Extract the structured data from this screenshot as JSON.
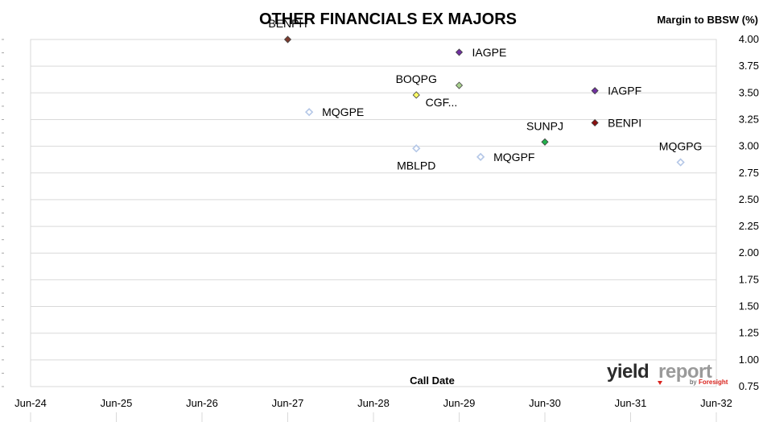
{
  "chart_data": {
    "type": "scatter",
    "title": "OTHER FINANCIALS EX MAJORS",
    "xlabel": "Call Date",
    "ylabel": "Margin to BBSW (%)",
    "x_ticks": [
      "Jun-24",
      "Jun-25",
      "Jun-26",
      "Jun-27",
      "Jun-28",
      "Jun-29",
      "Jun-30",
      "Jun-31",
      "Jun-32"
    ],
    "y_ticks": [
      "0.75",
      "1.00",
      "1.25",
      "1.50",
      "1.75",
      "2.00",
      "2.25",
      "2.50",
      "2.75",
      "3.00",
      "3.25",
      "3.50",
      "3.75",
      "4.00"
    ],
    "xlim": [
      "2024-06",
      "2032-06"
    ],
    "ylim": [
      0.75,
      4.0
    ],
    "grid": "horizontal",
    "points": [
      {
        "label": "BENPH",
        "x": "2027-06",
        "y": 4.0,
        "color": "#7a3b2e",
        "hollow": false,
        "label_pos": "above"
      },
      {
        "label": "IAGPE",
        "x": "2029-06",
        "y": 3.88,
        "color": "#7030a0",
        "hollow": false,
        "label_pos": "right"
      },
      {
        "label": "CGF...",
        "x": "2029-06",
        "y": 3.57,
        "color": "#a9d18e",
        "hollow": false,
        "label_pos": "below"
      },
      {
        "label": "BOQPG",
        "x": "2028-12",
        "y": 3.48,
        "color": "#ffff66",
        "hollow": false,
        "label_pos": "above"
      },
      {
        "label": "IAGPF",
        "x": "2031-01",
        "y": 3.52,
        "color": "#7030a0",
        "hollow": false,
        "label_pos": "right"
      },
      {
        "label": "MQGPE",
        "x": "2027-09",
        "y": 3.32,
        "color": "#b4c7e7",
        "hollow": true,
        "label_pos": "right"
      },
      {
        "label": "BENPI",
        "x": "2031-01",
        "y": 3.22,
        "color": "#8b1010",
        "hollow": false,
        "label_pos": "right"
      },
      {
        "label": "SUNPJ",
        "x": "2030-06",
        "y": 3.04,
        "color": "#22b14c",
        "hollow": false,
        "label_pos": "above"
      },
      {
        "label": "MBLPD",
        "x": "2028-12",
        "y": 2.98,
        "color": "#b4c7e7",
        "hollow": true,
        "label_pos": "below"
      },
      {
        "label": "MQGPF",
        "x": "2029-09",
        "y": 2.9,
        "color": "#b4c7e7",
        "hollow": true,
        "label_pos": "right"
      },
      {
        "label": "MQGPG",
        "x": "2032-01",
        "y": 2.85,
        "color": "#b4c7e7",
        "hollow": true,
        "label_pos": "above"
      }
    ]
  },
  "logo": {
    "part1": "yield",
    "part2": "report",
    "by": "by",
    "brand": "Foresight"
  }
}
